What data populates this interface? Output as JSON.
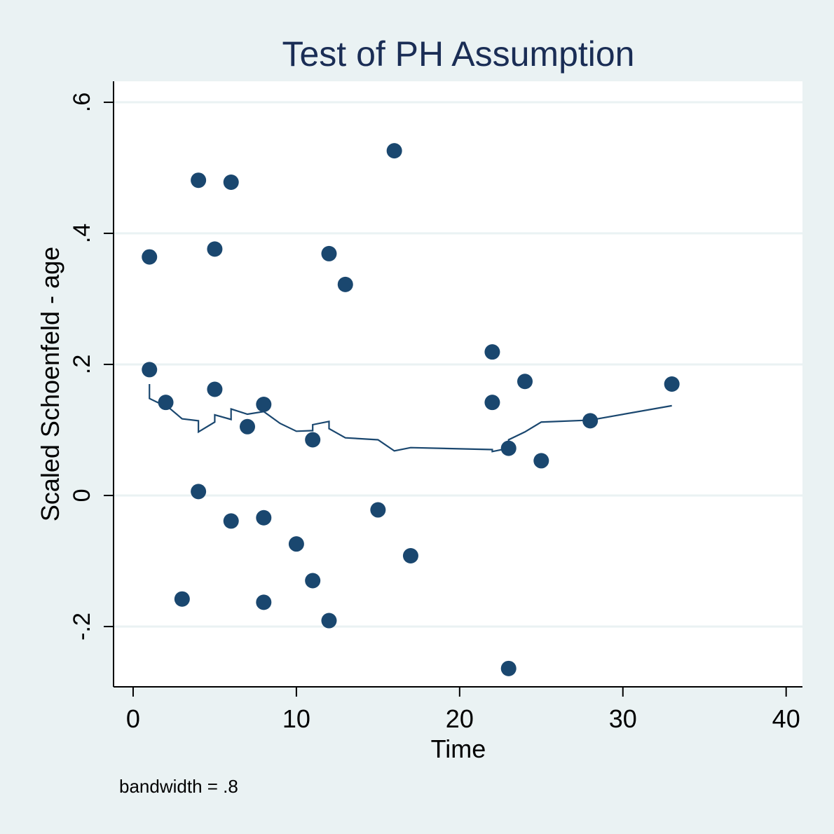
{
  "chart_data": {
    "type": "scatter",
    "title": "Test of PH Assumption",
    "xlabel": "Time",
    "ylabel": "Scaled Schoenfeld - age",
    "note": "bandwidth = .8",
    "xlim": [
      -1.2,
      41.0
    ],
    "ylim": [
      -0.292,
      0.632
    ],
    "xticks": [
      0,
      10,
      20,
      30,
      40
    ],
    "xtick_labels": [
      "0",
      "10",
      "20",
      "30",
      "40"
    ],
    "yticks": [
      -0.2,
      0,
      0.2,
      0.4,
      0.6
    ],
    "ytick_labels": [
      "-.2",
      "0",
      ".2",
      ".4",
      ".6"
    ],
    "grid": true,
    "colors": {
      "marker": "#1a476f",
      "line": "#1a476f",
      "title": "#1a2d55",
      "grid": "#eaf2f3",
      "axis": "#000000",
      "plot_bg": "#ffffff",
      "page_bg": "#eaf2f3"
    },
    "series": [
      {
        "name": "Scaled Schoenfeld residuals",
        "kind": "scatter",
        "points": [
          [
            1,
            0.364
          ],
          [
            1,
            0.192
          ],
          [
            2,
            0.142
          ],
          [
            3,
            -0.158
          ],
          [
            4,
            0.481
          ],
          [
            4,
            0.006
          ],
          [
            5,
            0.376
          ],
          [
            5,
            0.162
          ],
          [
            6,
            0.478
          ],
          [
            6,
            -0.039
          ],
          [
            7,
            0.105
          ],
          [
            8,
            0.139
          ],
          [
            8,
            -0.034
          ],
          [
            8,
            -0.163
          ],
          [
            10,
            -0.074
          ],
          [
            11,
            0.085
          ],
          [
            11,
            -0.13
          ],
          [
            12,
            0.369
          ],
          [
            12,
            -0.191
          ],
          [
            13,
            0.322
          ],
          [
            15,
            -0.022
          ],
          [
            16,
            0.526
          ],
          [
            17,
            -0.092
          ],
          [
            22,
            0.219
          ],
          [
            22,
            0.142
          ],
          [
            23,
            0.072
          ],
          [
            23,
            -0.264
          ],
          [
            24,
            0.174
          ],
          [
            25,
            0.053
          ],
          [
            28,
            0.114
          ],
          [
            33,
            0.17
          ]
        ]
      },
      {
        "name": "Lowess smooth",
        "kind": "line",
        "points": [
          [
            1,
            0.17
          ],
          [
            1,
            0.148
          ],
          [
            1.5,
            0.142
          ],
          [
            2,
            0.138
          ],
          [
            3,
            0.117
          ],
          [
            4,
            0.114
          ],
          [
            4,
            0.097
          ],
          [
            5,
            0.112
          ],
          [
            5,
            0.123
          ],
          [
            6,
            0.116
          ],
          [
            6,
            0.132
          ],
          [
            7,
            0.124
          ],
          [
            8,
            0.128
          ],
          [
            9,
            0.11
          ],
          [
            10,
            0.098
          ],
          [
            11,
            0.099
          ],
          [
            11,
            0.108
          ],
          [
            12,
            0.113
          ],
          [
            12,
            0.102
          ],
          [
            13,
            0.088
          ],
          [
            15,
            0.085
          ],
          [
            16,
            0.068
          ],
          [
            17,
            0.073
          ],
          [
            22,
            0.07
          ],
          [
            22,
            0.067
          ],
          [
            23,
            0.072
          ],
          [
            23,
            0.085
          ],
          [
            24,
            0.097
          ],
          [
            25,
            0.112
          ],
          [
            28,
            0.115
          ],
          [
            33,
            0.137
          ]
        ]
      }
    ]
  }
}
